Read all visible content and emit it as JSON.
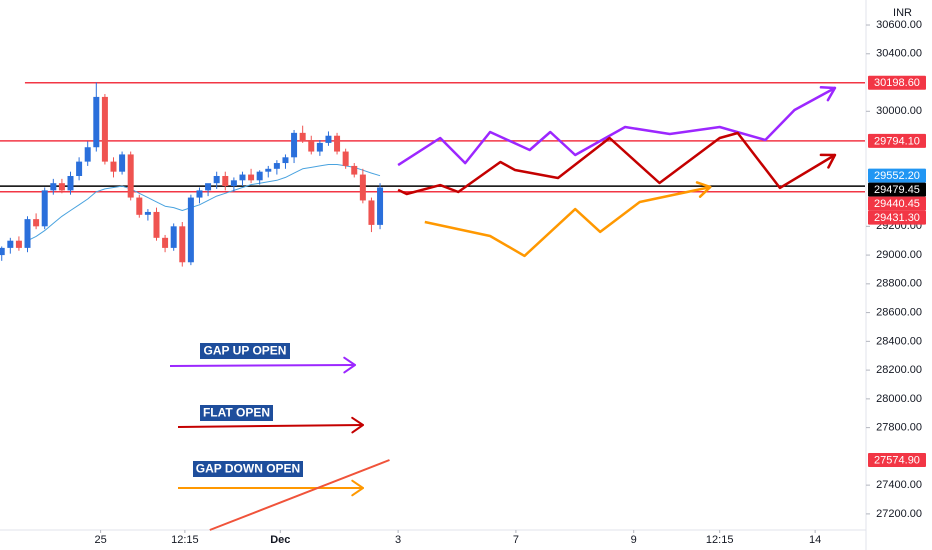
{
  "chart_data": {
    "type": "candlestick",
    "currency": "INR",
    "xlim": [
      -0.2,
      100.4
    ],
    "ylim": [
      27088,
      30774
    ],
    "grid": false,
    "up_color": "#2a6fdb",
    "down_color": "#ef5350",
    "xticks": [
      {
        "value": 11.5,
        "label": "25"
      },
      {
        "value": 21.3,
        "label": "12:15"
      },
      {
        "value": 32.4,
        "label": "Dec"
      },
      {
        "value": 46.1,
        "label": "3"
      },
      {
        "value": 59.8,
        "label": "7"
      },
      {
        "value": 73.5,
        "label": "9"
      },
      {
        "value": 83.5,
        "label": "12:15"
      },
      {
        "value": 94.6,
        "label": "14"
      }
    ],
    "yticks": [
      {
        "value": 30600,
        "label": "30600.00"
      },
      {
        "value": 30400,
        "label": "30400.00"
      },
      {
        "value": 30000,
        "label": "30000.00"
      },
      {
        "value": 29200,
        "label": "29200.00"
      },
      {
        "value": 29000,
        "label": "29000.00"
      },
      {
        "value": 28800,
        "label": "28800.00"
      },
      {
        "value": 28600,
        "label": "28600.00"
      },
      {
        "value": 28400,
        "label": "28400.00"
      },
      {
        "value": 28200,
        "label": "28200.00"
      },
      {
        "value": 28000,
        "label": "28000.00"
      },
      {
        "value": 27800,
        "label": "27800.00"
      },
      {
        "value": 27400,
        "label": "27400.00"
      },
      {
        "value": 27200,
        "label": "27200.00"
      }
    ],
    "open": [
      29000,
      29050,
      29100,
      29050,
      29250,
      29200,
      29450,
      29500,
      29450,
      29550,
      29650,
      29750,
      30100,
      29650,
      29580,
      29700,
      29400,
      29280,
      29300,
      29120,
      29050,
      29200,
      28950,
      29400,
      29450,
      29500,
      29550,
      29480,
      29520,
      29560,
      29520,
      29580,
      29600,
      29640,
      29680,
      29850,
      29800,
      29720,
      29780,
      29830,
      29720,
      29620,
      29560,
      29380,
      29210
    ],
    "high": [
      29060,
      29120,
      29130,
      29270,
      29290,
      29470,
      29530,
      29530,
      29580,
      29680,
      29790,
      30200,
      30120,
      29680,
      29720,
      29720,
      29420,
      29320,
      29330,
      29140,
      29220,
      29230,
      29420,
      29470,
      29490,
      29580,
      29580,
      29540,
      29580,
      29600,
      29590,
      29620,
      29660,
      29700,
      29870,
      29900,
      29830,
      29800,
      29860,
      29850,
      29740,
      29640,
      29600,
      29400,
      29500
    ],
    "low": [
      28960,
      29010,
      29030,
      29020,
      29180,
      29180,
      29420,
      29430,
      29420,
      29520,
      29620,
      29720,
      29630,
      29540,
      29560,
      29380,
      29260,
      29240,
      29100,
      29020,
      29030,
      28920,
      28930,
      29360,
      29410,
      29460,
      29450,
      29440,
      29480,
      29500,
      29490,
      29540,
      29560,
      29600,
      29640,
      29780,
      29700,
      29690,
      29760,
      29700,
      29600,
      29540,
      29360,
      29160,
      29180
    ],
    "close": [
      29050,
      29100,
      29050,
      29250,
      29200,
      29450,
      29500,
      29450,
      29550,
      29650,
      29750,
      30100,
      29650,
      29580,
      29700,
      29400,
      29280,
      29300,
      29120,
      29050,
      29200,
      28950,
      29400,
      29450,
      29500,
      29550,
      29480,
      29520,
      29560,
      29520,
      29580,
      29600,
      29640,
      29680,
      29850,
      29800,
      29720,
      29780,
      29830,
      29720,
      29620,
      29560,
      29380,
      29210,
      29470
    ],
    "ma": {
      "color": "#4aa3df",
      "values": [
        null,
        null,
        null,
        29100,
        29130,
        29170,
        29220,
        29270,
        29310,
        29350,
        29390,
        29440,
        29460,
        29470,
        29480,
        29460,
        29430,
        29400,
        29370,
        29340,
        29330,
        29310,
        29330,
        29350,
        29380,
        29410,
        29430,
        29450,
        29470,
        29490,
        29500,
        29510,
        29520,
        29540,
        29570,
        29600,
        29610,
        29620,
        29630,
        29630,
        29620,
        29610,
        29590,
        29570,
        29552.2
      ]
    },
    "price_labels": [
      {
        "value": 30198.6,
        "label": "30198.60",
        "color": "#f23645",
        "line": true,
        "from": 2.7
      },
      {
        "value": 29794.1,
        "label": "29794.10",
        "color": "#f23645",
        "line": true
      },
      {
        "value": 29552.2,
        "label": "29552.20",
        "color": "#2196f3",
        "line": false
      },
      {
        "value": 29479.45,
        "label": "29479.45",
        "color": "#000000",
        "line": true
      },
      {
        "value": 29440.45,
        "label": "29440.45",
        "color": "#f23645",
        "line": true
      },
      {
        "value": 29431.3,
        "label": "29431.30",
        "color": "#f23645",
        "line": false
      },
      {
        "value": 27574.9,
        "label": "27574.90",
        "color": "#f23645",
        "line": false
      }
    ],
    "projections": [
      {
        "color": "#9c27ff",
        "x": [
          46.1,
          51.0,
          53.9,
          56.8,
          61.4,
          63.8,
          66.7,
          72.5,
          77.7,
          83.5,
          88.8,
          92.2,
          96.9
        ],
        "values": [
          29626,
          29814,
          29640,
          29856,
          29731,
          29856,
          29696,
          29891,
          29842,
          29891,
          29800,
          30009,
          30162
        ]
      },
      {
        "color": "#c40000",
        "x": [
          46.1,
          47.1,
          51.0,
          53.1,
          58.0,
          59.7,
          64.7,
          70.7,
          76.5,
          83.5,
          85.6,
          90.5,
          96.9
        ],
        "values": [
          29453,
          29425,
          29487,
          29439,
          29647,
          29592,
          29536,
          29814,
          29501,
          29814,
          29849,
          29467,
          29696
        ]
      },
      {
        "color": "#ff9800",
        "x": [
          49.2,
          56.8,
          60.8,
          66.7,
          69.6,
          74.2,
          82.4
        ],
        "values": [
          29230,
          29133,
          28994,
          29320,
          29161,
          29369,
          29473
        ]
      }
    ],
    "trendline": {
      "color": "#f0533a",
      "x": [
        24.2,
        45.1
      ],
      "values": [
        27088,
        27574.9
      ]
    },
    "annotations": [
      {
        "text": "GAP UP OPEN",
        "color": "#9c27ff"
      },
      {
        "text": "FLAT OPEN",
        "color": "#c40000"
      },
      {
        "text": "GAP DOWN OPEN",
        "color": "#ff9800"
      }
    ]
  }
}
